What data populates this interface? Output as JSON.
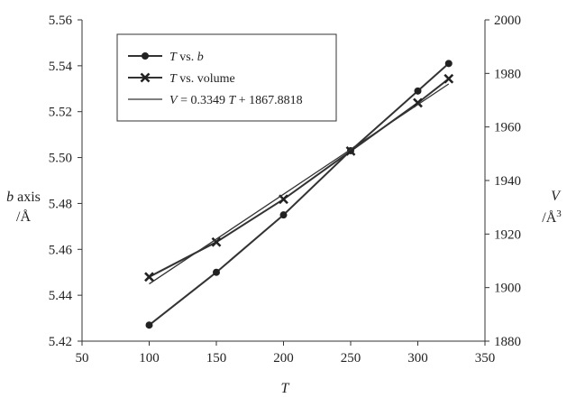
{
  "chart_data": {
    "type": "line",
    "title": "",
    "xlabel": "T",
    "xlim": [
      50,
      350
    ],
    "x_ticks": [
      50,
      100,
      150,
      200,
      250,
      300,
      350
    ],
    "ylabel_left": {
      "main": "b",
      "suffix": " axis",
      "unit": "/Å"
    },
    "ylim_left": [
      5.42,
      5.56
    ],
    "y_ticks_left": [
      "5.42",
      "5.44",
      "5.46",
      "5.48",
      "5.50",
      "5.52",
      "5.54",
      "5.56"
    ],
    "ylabel_right": {
      "main": "V",
      "unit": "/Å",
      "exp": "3"
    },
    "ylim_right": [
      1880,
      2000
    ],
    "y_ticks_right": [
      1880,
      1900,
      1920,
      1940,
      1960,
      1980,
      2000
    ],
    "grid": false,
    "legend_position": "top-left",
    "series": [
      {
        "id": "b",
        "legend": {
          "main": "T",
          "suffix": " vs. ",
          "tail": "b"
        },
        "axis": "left",
        "marker": "circle",
        "x": [
          100,
          150,
          200,
          250,
          300,
          323
        ],
        "y": [
          5.427,
          5.45,
          5.475,
          5.503,
          5.529,
          5.541
        ]
      },
      {
        "id": "volume",
        "legend": {
          "main": "T",
          "suffix": " vs. volume",
          "tail": ""
        },
        "axis": "right",
        "marker": "x",
        "x": [
          100,
          150,
          200,
          250,
          300,
          323
        ],
        "y": [
          1904,
          1917,
          1933,
          1951,
          1969,
          1978
        ]
      },
      {
        "id": "fit",
        "legend": {
          "main": "V",
          "suffix": " = 0.3349 ",
          "tail": "T",
          "after": " + 1867.8818"
        },
        "axis": "right",
        "marker": "none",
        "slope": 0.3349,
        "intercept": 1867.8818,
        "x": [
          100,
          323
        ]
      }
    ]
  }
}
